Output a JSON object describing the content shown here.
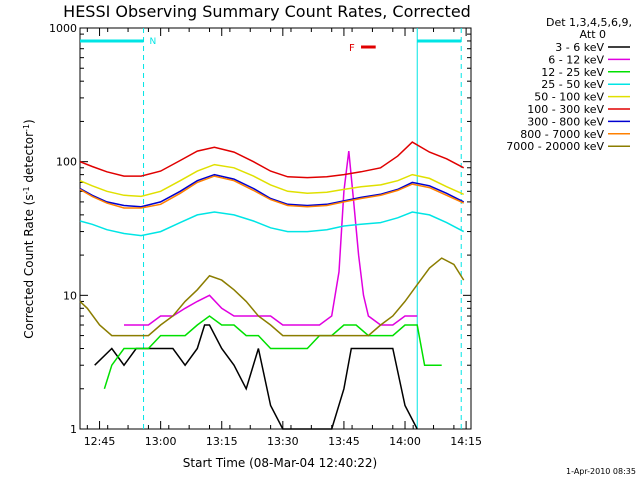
{
  "chart_data": {
    "type": "line",
    "title": "HESSI Observing Summary Count Rates, Corrected",
    "xlabel": "Start Time (08-Mar-04 12:40:22)",
    "ylabel_main": "Corrected Count Rate (s",
    "ylabel_sup1": "-1",
    "ylabel_mid": " detector",
    "ylabel_sup2": "-1",
    "ylabel_end": ")",
    "yscale": "log",
    "ylim": [
      1,
      1000
    ],
    "ytick_labels": [
      "1",
      "10",
      "100",
      "1000"
    ],
    "xlim_minutes": [
      12.67,
      14.27
    ],
    "xtick_labels": [
      "12:45",
      "13:00",
      "13:15",
      "13:30",
      "13:45",
      "14:00",
      "14:15"
    ],
    "xtick_values_hours": [
      12.75,
      13.0,
      13.25,
      13.5,
      13.75,
      14.0,
      14.25
    ],
    "legend_header": [
      "Det 1,3,4,5,6,9,",
      "Att 0"
    ],
    "timestamp": "1-Apr-2010 08:35",
    "flags": {
      "night_label": "N",
      "flare_label": "F",
      "night_color": "#00e5e5",
      "flare_color": "#e00000",
      "night_bars_hours": [
        [
          12.67,
          12.93
        ],
        [
          14.05,
          14.23
        ]
      ],
      "night_boundaries_hours": [
        12.93,
        14.05,
        14.23
      ],
      "flare_bar_hours": [
        13.82,
        13.88
      ]
    },
    "series": [
      {
        "name": "3 - 6 keV",
        "color": "#000000",
        "x": [
          12.73,
          12.8,
          12.85,
          12.9,
          12.95,
          13.0,
          13.05,
          13.1,
          13.15,
          13.18,
          13.2,
          13.25,
          13.3,
          13.35,
          13.4,
          13.45,
          13.5,
          13.55,
          13.6,
          13.65,
          13.7,
          13.75,
          13.78,
          13.8,
          13.85,
          13.9,
          13.95,
          14.0,
          14.05
        ],
        "y": [
          3,
          4,
          3,
          4,
          4,
          4,
          4,
          3,
          4,
          6,
          6,
          4,
          3,
          2,
          4,
          1.5,
          1,
          1,
          1,
          1,
          1,
          2,
          4,
          4,
          4,
          4,
          4,
          1.5,
          1
        ]
      },
      {
        "name": "6 - 12 keV",
        "color": "#e000e0",
        "x": [
          12.85,
          12.9,
          12.95,
          13.0,
          13.05,
          13.1,
          13.15,
          13.2,
          13.25,
          13.3,
          13.35,
          13.4,
          13.45,
          13.5,
          13.55,
          13.6,
          13.65,
          13.7,
          13.73,
          13.75,
          13.77,
          13.79,
          13.81,
          13.83,
          13.85,
          13.9,
          13.95,
          14.0,
          14.05
        ],
        "y": [
          6,
          6,
          6,
          7,
          7,
          8,
          9,
          10,
          8,
          7,
          7,
          7,
          7,
          6,
          6,
          6,
          6,
          7,
          15,
          60,
          120,
          50,
          20,
          10,
          7,
          6,
          6,
          7,
          7
        ]
      },
      {
        "name": "12 - 25 keV",
        "color": "#00e000",
        "x": [
          12.77,
          12.8,
          12.85,
          12.9,
          12.95,
          13.0,
          13.05,
          13.1,
          13.15,
          13.2,
          13.25,
          13.3,
          13.35,
          13.4,
          13.45,
          13.5,
          13.55,
          13.6,
          13.65,
          13.7,
          13.75,
          13.8,
          13.85,
          13.9,
          13.95,
          14.0,
          14.05,
          14.08,
          14.12,
          14.15
        ],
        "y": [
          2,
          3,
          4,
          4,
          4,
          5,
          5,
          5,
          6,
          7,
          6,
          6,
          5,
          5,
          4,
          4,
          4,
          4,
          5,
          5,
          6,
          6,
          5,
          5,
          5,
          6,
          6,
          3,
          3,
          3
        ]
      },
      {
        "name": "25 - 50 keV",
        "color": "#00e5e5",
        "x": [
          12.67,
          12.72,
          12.78,
          12.85,
          12.92,
          13.0,
          13.08,
          13.15,
          13.22,
          13.3,
          13.38,
          13.45,
          13.52,
          13.6,
          13.68,
          13.75,
          13.82,
          13.9,
          13.97,
          14.03,
          14.1,
          14.17,
          14.24
        ],
        "y": [
          36,
          34,
          31,
          29,
          28,
          30,
          35,
          40,
          42,
          40,
          36,
          32,
          30,
          30,
          31,
          33,
          34,
          35,
          38,
          42,
          40,
          35,
          30
        ]
      },
      {
        "name": "50 - 100 keV",
        "color": "#e0e000",
        "x": [
          12.67,
          12.72,
          12.78,
          12.85,
          12.92,
          13.0,
          13.08,
          13.15,
          13.22,
          13.3,
          13.38,
          13.45,
          13.52,
          13.6,
          13.68,
          13.75,
          13.82,
          13.9,
          13.97,
          14.03,
          14.1,
          14.17,
          14.24
        ],
        "y": [
          72,
          66,
          60,
          56,
          55,
          60,
          72,
          85,
          95,
          90,
          78,
          67,
          60,
          58,
          59,
          62,
          65,
          67,
          72,
          80,
          75,
          65,
          57
        ]
      },
      {
        "name": "100 - 300 keV",
        "color": "#e00000",
        "x": [
          12.67,
          12.72,
          12.78,
          12.85,
          12.92,
          13.0,
          13.08,
          13.15,
          13.22,
          13.3,
          13.38,
          13.45,
          13.52,
          13.6,
          13.68,
          13.75,
          13.82,
          13.9,
          13.97,
          14.03,
          14.1,
          14.17,
          14.24
        ],
        "y": [
          100,
          92,
          84,
          78,
          78,
          85,
          102,
          120,
          128,
          118,
          100,
          85,
          77,
          76,
          77,
          80,
          84,
          90,
          110,
          140,
          118,
          105,
          90
        ]
      },
      {
        "name": "300 - 800 keV",
        "color": "#0000d0",
        "x": [
          12.67,
          12.72,
          12.78,
          12.85,
          12.92,
          13.0,
          13.08,
          13.15,
          13.22,
          13.3,
          13.38,
          13.45,
          13.52,
          13.6,
          13.68,
          13.75,
          13.82,
          13.9,
          13.97,
          14.03,
          14.1,
          14.17,
          14.24
        ],
        "y": [
          63,
          56,
          50,
          47,
          46,
          50,
          60,
          72,
          80,
          74,
          63,
          53,
          48,
          47,
          48,
          51,
          54,
          57,
          62,
          70,
          66,
          58,
          50
        ]
      },
      {
        "name": "800 - 7000 keV",
        "color": "#ff8000",
        "x": [
          12.67,
          12.72,
          12.78,
          12.85,
          12.92,
          13.0,
          13.08,
          13.15,
          13.22,
          13.3,
          13.38,
          13.45,
          13.52,
          13.6,
          13.68,
          13.75,
          13.82,
          13.9,
          13.97,
          14.03,
          14.1,
          14.17,
          14.24
        ],
        "y": [
          62,
          55,
          49,
          45,
          45,
          48,
          58,
          70,
          78,
          72,
          61,
          52,
          47,
          46,
          47,
          50,
          53,
          56,
          61,
          68,
          64,
          56,
          49
        ]
      },
      {
        "name": "7000 - 20000 keV",
        "color": "#8b7d00",
        "x": [
          12.67,
          12.7,
          12.75,
          12.8,
          12.85,
          12.9,
          12.95,
          13.0,
          13.05,
          13.1,
          13.15,
          13.2,
          13.25,
          13.3,
          13.35,
          13.4,
          13.45,
          13.5,
          13.55,
          13.6,
          13.65,
          13.7,
          13.75,
          13.8,
          13.85,
          13.9,
          13.95,
          14.0,
          14.05,
          14.1,
          14.15,
          14.2,
          14.24
        ],
        "y": [
          9,
          8,
          6,
          5,
          5,
          5,
          5,
          6,
          7,
          9,
          11,
          14,
          13,
          11,
          9,
          7,
          6,
          5,
          5,
          5,
          5,
          5,
          5,
          5,
          5,
          6,
          7,
          9,
          12,
          16,
          19,
          17,
          13
        ]
      }
    ]
  }
}
